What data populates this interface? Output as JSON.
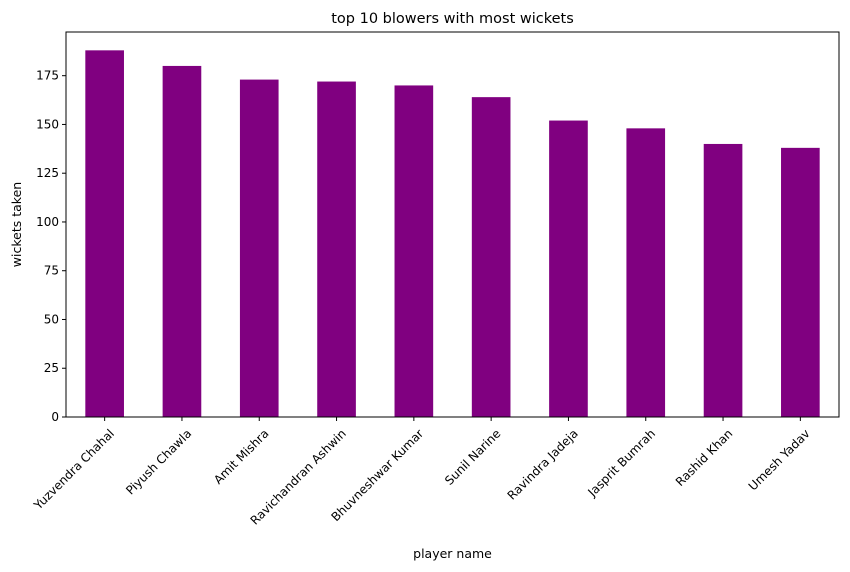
{
  "chart_data": {
    "type": "bar",
    "title": "top 10 blowers with most wickets",
    "xlabel": "player name",
    "ylabel": "wickets taken",
    "categories": [
      "Yuzvendra Chahal",
      "Piyush Chawla",
      "Amit Mishra",
      "Ravichandran Ashwin",
      "Bhuvneshwar Kumar",
      "Sunil Narine",
      "Ravindra Jadeja",
      "Jasprit Bumrah",
      "Rashid Khan",
      "Umesh Yadav"
    ],
    "values": [
      188,
      180,
      173,
      172,
      170,
      164,
      152,
      148,
      140,
      138
    ],
    "ylim": [
      0,
      197.4
    ],
    "yticks": [
      0,
      25,
      50,
      75,
      100,
      125,
      150,
      175
    ],
    "bar_color": "#800080",
    "grid": false,
    "legend": "none"
  }
}
